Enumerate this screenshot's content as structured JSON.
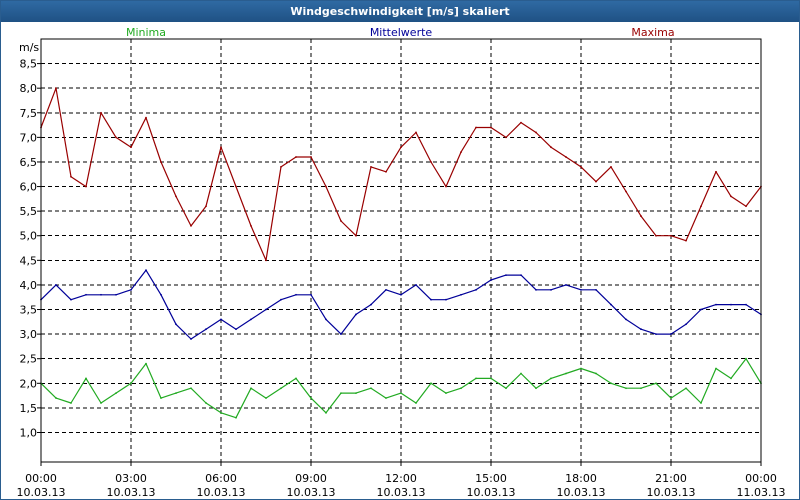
{
  "window": {
    "title": "Windgeschwindigkeit [m/s] skaliert"
  },
  "colors": {
    "min": "#22aa22",
    "avg": "#000099",
    "max": "#990000",
    "title_bg": "#1f5184"
  },
  "chart_data": {
    "type": "line",
    "title": "Windgeschwindigkeit [m/s] skaliert",
    "ylabel": "m/s",
    "xlabel": "",
    "ylim": [
      0.4,
      9.0
    ],
    "xlim": [
      0,
      24
    ],
    "grid": true,
    "yticks": [
      1.0,
      1.5,
      2.0,
      2.5,
      3.0,
      3.5,
      4.0,
      4.5,
      5.0,
      5.5,
      6.0,
      6.5,
      7.0,
      7.5,
      8.0,
      8.5
    ],
    "ytick_labels": [
      "1,0",
      "1,5",
      "2,0",
      "2,5",
      "3,0",
      "3,5",
      "4,0",
      "4,5",
      "5,0",
      "5,5",
      "6,0",
      "6,5",
      "7,0",
      "7,5",
      "8,0",
      "8,5"
    ],
    "xticks": [
      {
        "t": 0,
        "time": "00:00",
        "date": "10.03.13"
      },
      {
        "t": 3,
        "time": "03:00",
        "date": "10.03.13"
      },
      {
        "t": 6,
        "time": "06:00",
        "date": "10.03.13"
      },
      {
        "t": 9,
        "time": "09:00",
        "date": "10.03.13"
      },
      {
        "t": 12,
        "time": "12:00",
        "date": "10.03.13"
      },
      {
        "t": 15,
        "time": "15:00",
        "date": "10.03.13"
      },
      {
        "t": 18,
        "time": "18:00",
        "date": "10.03.13"
      },
      {
        "t": 21,
        "time": "21:00",
        "date": "10.03.13"
      },
      {
        "t": 24,
        "time": "00:00",
        "date": "11.03.13"
      }
    ],
    "legend": [
      "Minima",
      "Mittelwerte",
      "Maxima"
    ],
    "series": [
      {
        "name": "Minima",
        "key": "min",
        "x": [
          0,
          0.5,
          1,
          1.5,
          2,
          2.5,
          3,
          3.5,
          4,
          4.5,
          5,
          5.5,
          6,
          6.5,
          7,
          7.5,
          8,
          8.5,
          9,
          9.5,
          10,
          10.5,
          11,
          11.5,
          12,
          12.5,
          13,
          13.5,
          14,
          14.5,
          15,
          15.5,
          16,
          16.5,
          17,
          17.5,
          18,
          18.5,
          19,
          19.5,
          20,
          20.5,
          21,
          21.5,
          22,
          22.5,
          23,
          23.5,
          24
        ],
        "values": [
          2.0,
          1.7,
          1.6,
          2.1,
          1.6,
          1.8,
          2.0,
          2.4,
          1.7,
          1.8,
          1.9,
          1.6,
          1.4,
          1.3,
          1.9,
          1.7,
          1.9,
          2.1,
          1.7,
          1.4,
          1.8,
          1.8,
          1.9,
          1.7,
          1.8,
          1.6,
          2.0,
          1.8,
          1.9,
          2.1,
          2.1,
          1.9,
          2.2,
          1.9,
          2.1,
          2.2,
          2.3,
          2.2,
          2.0,
          1.9,
          1.9,
          2.0,
          1.7,
          1.9,
          1.6,
          2.3,
          2.1,
          2.5,
          2.0
        ]
      },
      {
        "name": "Mittelwerte",
        "key": "avg",
        "x": [
          0,
          0.5,
          1,
          1.5,
          2,
          2.5,
          3,
          3.5,
          4,
          4.5,
          5,
          5.5,
          6,
          6.5,
          7,
          7.5,
          8,
          8.5,
          9,
          9.5,
          10,
          10.5,
          11,
          11.5,
          12,
          12.5,
          13,
          13.5,
          14,
          14.5,
          15,
          15.5,
          16,
          16.5,
          17,
          17.5,
          18,
          18.5,
          19,
          19.5,
          20,
          20.5,
          21,
          21.5,
          22,
          22.5,
          23,
          23.5,
          24
        ],
        "values": [
          3.7,
          4.0,
          3.7,
          3.8,
          3.8,
          3.8,
          3.9,
          4.3,
          3.8,
          3.2,
          2.9,
          3.1,
          3.3,
          3.1,
          3.3,
          3.5,
          3.7,
          3.8,
          3.8,
          3.3,
          3.0,
          3.4,
          3.6,
          3.9,
          3.8,
          4.0,
          3.7,
          3.7,
          3.8,
          3.9,
          4.1,
          4.2,
          4.2,
          3.9,
          3.9,
          4.0,
          3.9,
          3.9,
          3.6,
          3.3,
          3.1,
          3.0,
          3.0,
          3.2,
          3.5,
          3.6,
          3.6,
          3.6,
          3.4
        ]
      },
      {
        "name": "Maxima",
        "key": "max",
        "x": [
          0,
          0.5,
          1,
          1.5,
          2,
          2.5,
          3,
          3.5,
          4,
          4.5,
          5,
          5.5,
          6,
          6.5,
          7,
          7.5,
          8,
          8.5,
          9,
          9.5,
          10,
          10.5,
          11,
          11.5,
          12,
          12.5,
          13,
          13.5,
          14,
          14.5,
          15,
          15.5,
          16,
          16.5,
          17,
          17.5,
          18,
          18.5,
          19,
          19.5,
          20,
          20.5,
          21,
          21.5,
          22,
          22.5,
          23,
          23.5,
          24
        ],
        "values": [
          7.2,
          8.0,
          6.2,
          6.0,
          7.5,
          7.0,
          6.8,
          7.4,
          6.5,
          5.8,
          5.2,
          5.6,
          6.8,
          6.0,
          5.2,
          4.5,
          6.4,
          6.6,
          6.6,
          6.0,
          5.3,
          5.0,
          6.4,
          6.3,
          6.8,
          7.1,
          6.5,
          6.0,
          6.7,
          7.2,
          7.2,
          7.0,
          7.3,
          7.1,
          6.8,
          6.6,
          6.4,
          6.1,
          6.4,
          5.9,
          5.4,
          5.0,
          5.0,
          4.9,
          5.6,
          6.3,
          5.8,
          5.6,
          6.0
        ]
      }
    ]
  }
}
